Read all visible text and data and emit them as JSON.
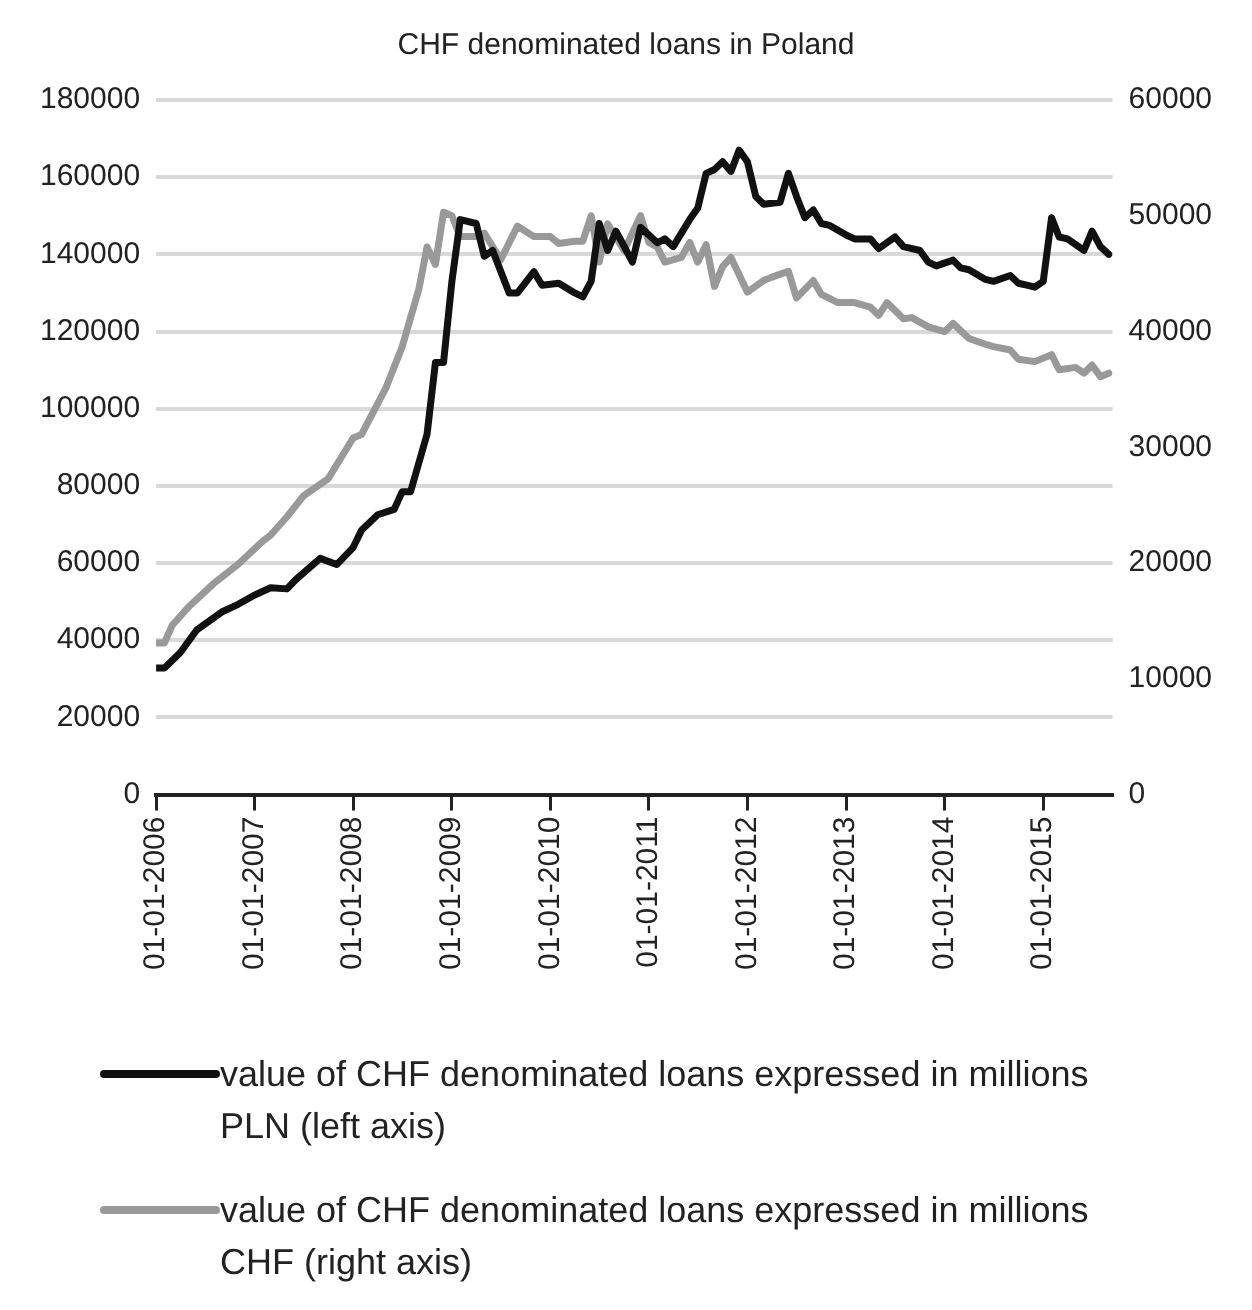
{
  "chart_data": {
    "type": "line",
    "title": "CHF denominated loans in Poland",
    "legend": "bottom",
    "grid": "y",
    "marker": "none",
    "line_style": "solid",
    "xlim": [
      "2006-01-01",
      "2015-09-15"
    ],
    "xticks": [
      {
        "value": "2006-01-01",
        "label": "01-01-2006"
      },
      {
        "value": "2007-01-01",
        "label": "01-01-2007"
      },
      {
        "value": "2008-01-01",
        "label": "01-01-2008"
      },
      {
        "value": "2009-01-01",
        "label": "01-01-2009"
      },
      {
        "value": "2010-01-01",
        "label": "01-01-2010"
      },
      {
        "value": "2011-01-01",
        "label": "01-01-2011"
      },
      {
        "value": "2012-01-01",
        "label": "01-01-2012"
      },
      {
        "value": "2013-01-01",
        "label": "01-01-2013"
      },
      {
        "value": "2014-01-01",
        "label": "01-01-2014"
      },
      {
        "value": "2015-01-01",
        "label": "01-01-2015"
      }
    ],
    "ylim": [
      0,
      180000
    ],
    "yticks": [
      0,
      20000,
      40000,
      60000,
      80000,
      100000,
      120000,
      140000,
      160000,
      180000
    ],
    "y2lim": [
      0,
      60000
    ],
    "y2ticks": [
      0,
      10000,
      20000,
      30000,
      40000,
      50000,
      60000
    ],
    "series": [
      {
        "name": "value of CHF denominated loans expressed in millions PLN (left axis)",
        "color": "#111111",
        "axis": "y",
        "x": [
          "2006-01",
          "2006-02",
          "2006-04",
          "2006-06",
          "2006-09",
          "2006-11",
          "2007-01",
          "2007-03",
          "2007-05",
          "2007-06",
          "2007-09",
          "2007-11",
          "2008-01",
          "2008-02",
          "2008-04",
          "2008-06",
          "2008-07",
          "2008-08",
          "2008-10",
          "2008-11",
          "2008-12",
          "2009-01",
          "2009-02",
          "2009-04",
          "2009-05",
          "2009-06",
          "2009-08",
          "2009-09",
          "2009-11",
          "2009-12",
          "2010-02",
          "2010-04",
          "2010-05",
          "2010-06",
          "2010-07",
          "2010-08",
          "2010-09",
          "2010-11",
          "2010-12",
          "2011-02",
          "2011-03",
          "2011-04",
          "2011-06",
          "2011-07",
          "2011-08",
          "2011-09",
          "2011-10",
          "2011-11",
          "2011-12",
          "2012-01",
          "2012-02",
          "2012-03",
          "2012-05",
          "2012-06",
          "2012-07",
          "2012-08",
          "2012-09",
          "2012-10",
          "2012-11",
          "2013-01",
          "2013-02",
          "2013-04",
          "2013-05",
          "2013-07",
          "2013-08",
          "2013-10",
          "2013-11",
          "2013-12",
          "2014-02",
          "2014-03",
          "2014-04",
          "2014-06",
          "2014-07",
          "2014-09",
          "2014-10",
          "2014-11",
          "2014-12",
          "2015-01",
          "2015-02",
          "2015-03",
          "2015-04",
          "2015-06",
          "2015-07",
          "2015-08",
          "2015-09"
        ],
        "values": [
          32800,
          32800,
          36800,
          42700,
          47300,
          49300,
          51700,
          53600,
          53300,
          55600,
          61200,
          59600,
          64000,
          68500,
          72500,
          73900,
          78500,
          78500,
          93400,
          112000,
          112000,
          133000,
          149000,
          148000,
          139500,
          141000,
          130000,
          130000,
          135500,
          132000,
          132500,
          130000,
          129000,
          133000,
          148000,
          141000,
          146000,
          138000,
          147000,
          143000,
          144000,
          142000,
          149000,
          152000,
          161000,
          162000,
          164000,
          161500,
          167000,
          164000,
          155000,
          153000,
          153500,
          161000,
          155000,
          149500,
          151500,
          148000,
          147500,
          145000,
          144000,
          144000,
          141500,
          144500,
          142000,
          141000,
          138000,
          137000,
          138500,
          136500,
          136000,
          133500,
          133000,
          134500,
          132500,
          132000,
          131500,
          133000,
          149500,
          144500,
          144000,
          141000,
          146000,
          142000,
          140000
        ]
      },
      {
        "name": "value of CHF denominated loans expressed in millions CHF (right axis)",
        "color": "#999999",
        "axis": "y2",
        "x": [
          "2006-01",
          "2006-02",
          "2006-03",
          "2006-05",
          "2006-08",
          "2006-11",
          "2007-02",
          "2007-03",
          "2007-05",
          "2007-07",
          "2007-10",
          "2008-01",
          "2008-02",
          "2008-05",
          "2008-07",
          "2008-09",
          "2008-10",
          "2008-11",
          "2008-12",
          "2009-01",
          "2009-02",
          "2009-04",
          "2009-05",
          "2009-07",
          "2009-09",
          "2009-11",
          "2010-01",
          "2010-02",
          "2010-04",
          "2010-05",
          "2010-06",
          "2010-07",
          "2010-08",
          "2010-10",
          "2010-12",
          "2011-01",
          "2011-02",
          "2011-03",
          "2011-05",
          "2011-06",
          "2011-07",
          "2011-08",
          "2011-09",
          "2011-10",
          "2011-11",
          "2012-01",
          "2012-03",
          "2012-04",
          "2012-06",
          "2012-07",
          "2012-09",
          "2012-10",
          "2012-12",
          "2013-02",
          "2013-04",
          "2013-05",
          "2013-06",
          "2013-08",
          "2013-09",
          "2013-11",
          "2014-01",
          "2014-02",
          "2014-04",
          "2014-06",
          "2014-07",
          "2014-09",
          "2014-10",
          "2014-12",
          "2015-02",
          "2015-03",
          "2015-05",
          "2015-06",
          "2015-07",
          "2015-08",
          "2015-09"
        ],
        "values": [
          13100,
          13100,
          14600,
          16200,
          18200,
          19900,
          21900,
          22400,
          24000,
          25800,
          27300,
          30800,
          31100,
          35100,
          38700,
          43700,
          47300,
          45800,
          50300,
          50000,
          48200,
          48200,
          48500,
          46200,
          49100,
          48200,
          48200,
          47600,
          47800,
          47800,
          50000,
          46000,
          49300,
          47000,
          50000,
          47700,
          47300,
          46000,
          46400,
          47700,
          46000,
          47500,
          43900,
          45600,
          46400,
          43400,
          44400,
          44700,
          45200,
          42900,
          44400,
          43200,
          42500,
          42500,
          42100,
          41400,
          42500,
          41100,
          41200,
          40400,
          40000,
          40700,
          39400,
          38900,
          38700,
          38400,
          37600,
          37400,
          38000,
          36700,
          36900,
          36400,
          37100,
          36100,
          36400
        ]
      }
    ]
  }
}
